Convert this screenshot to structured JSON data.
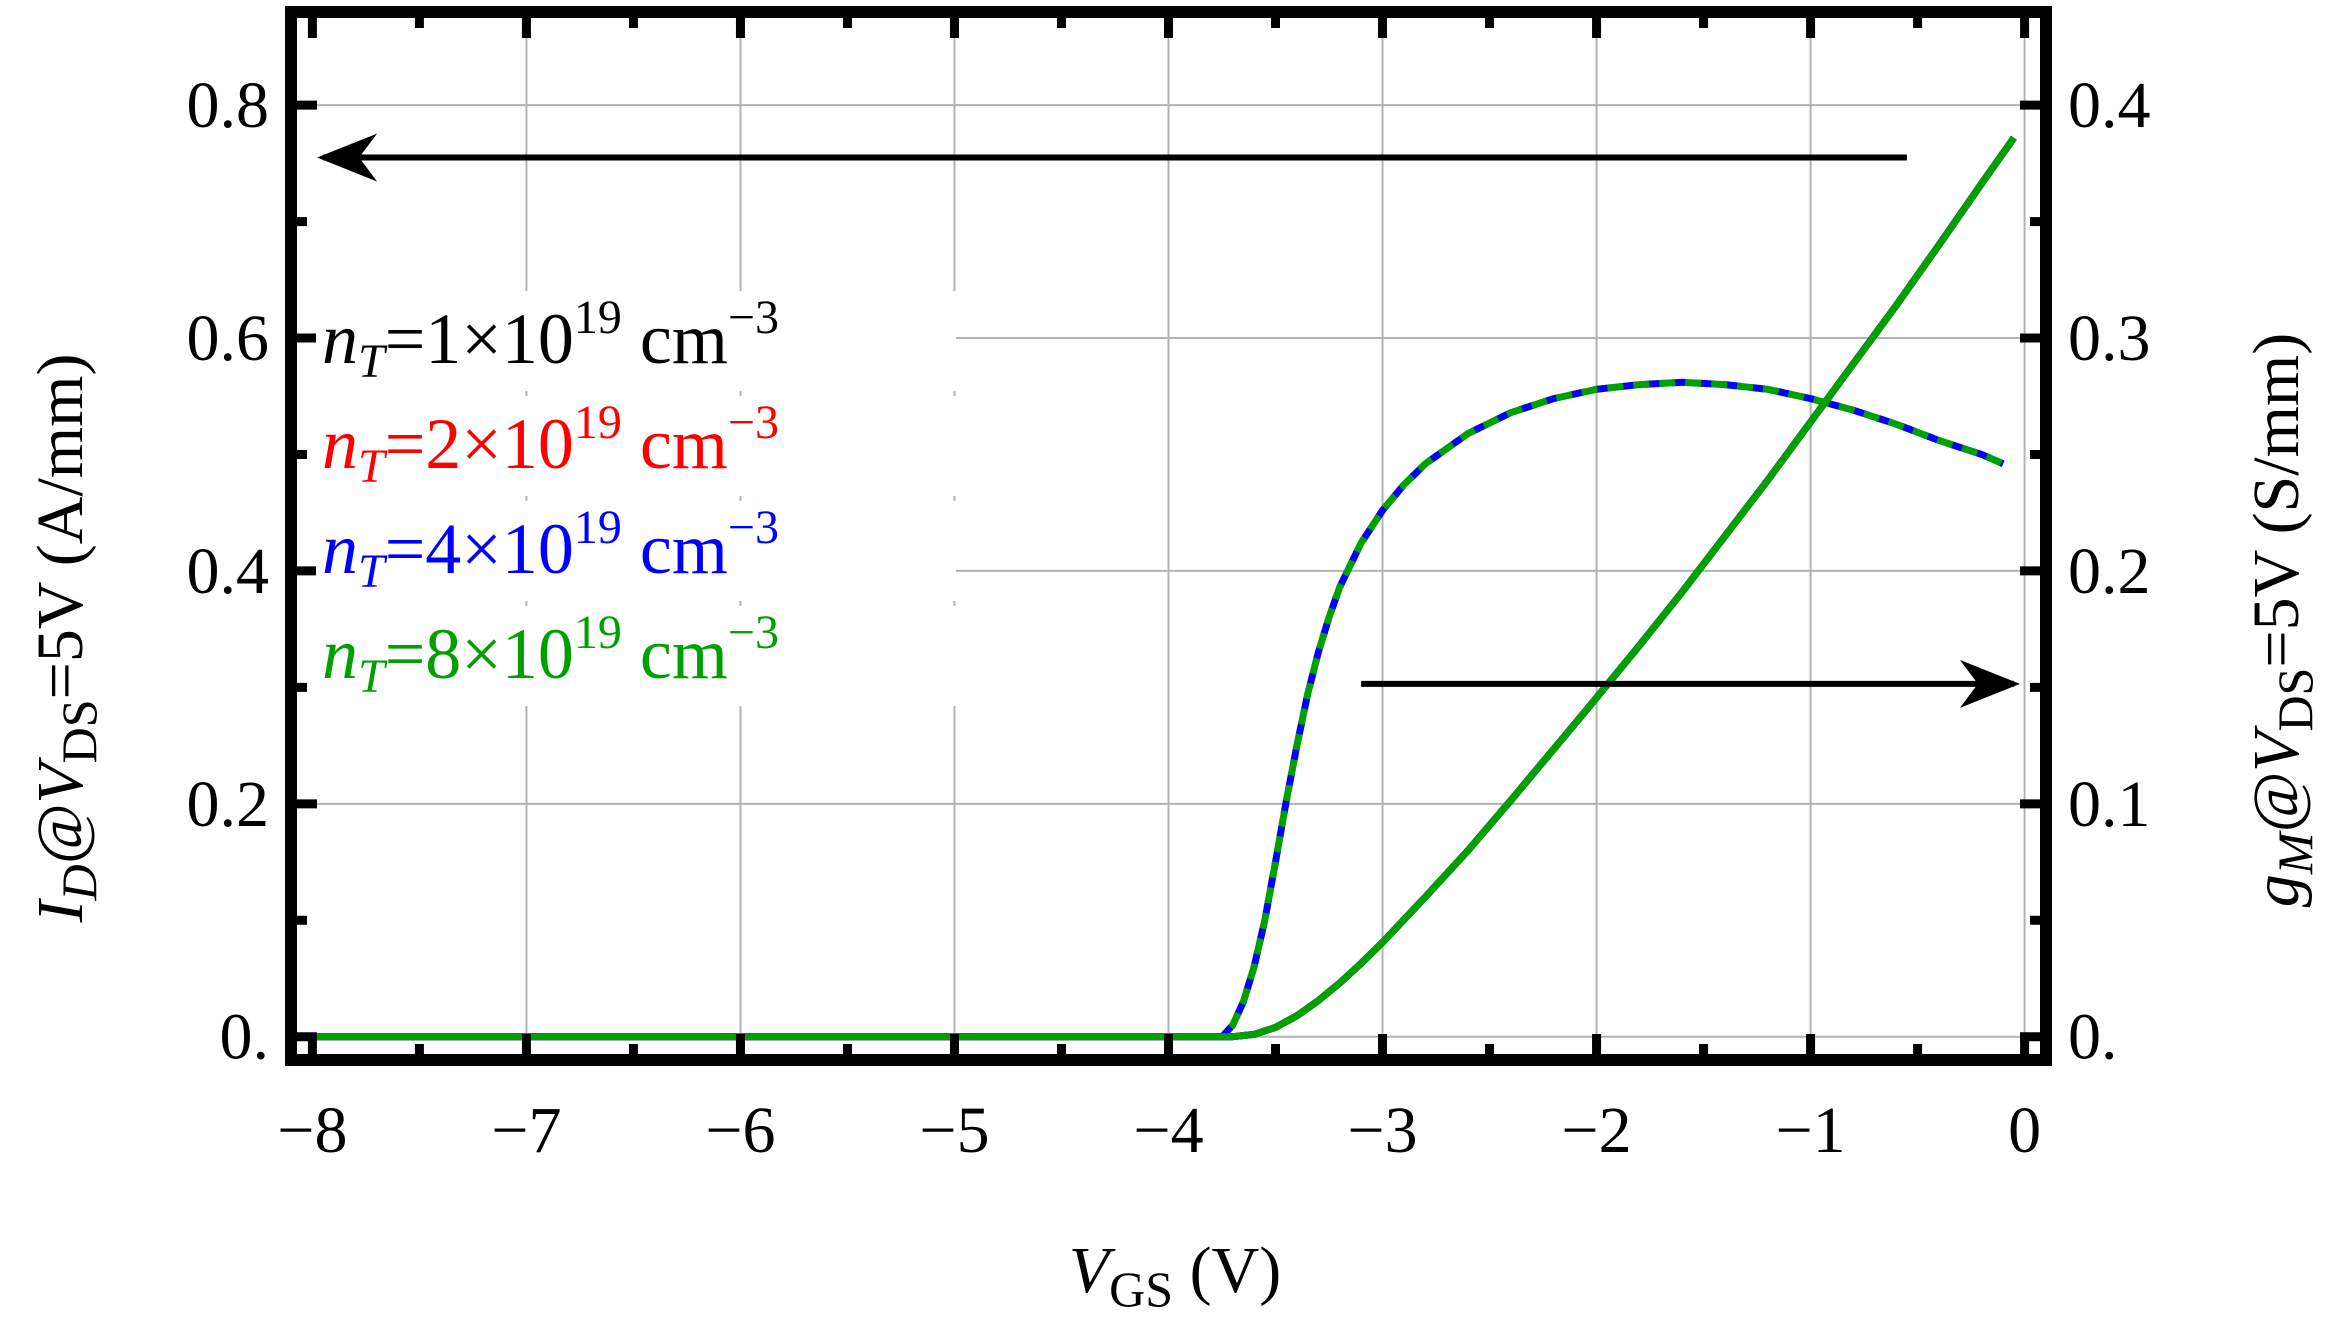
{
  "chart_data": {
    "type": "line",
    "xlabel": "V_GS (V)",
    "xlabel_parts": {
      "main": "V",
      "sub": "GS",
      "rest": " (V)"
    },
    "ylabel_left": "I_D@V_DS=5V (A/mm)",
    "ylabel_left_parts": {
      "var": "I",
      "var_sub": "D",
      "at": "@V",
      "at_sub": "DS",
      "rest": "=5V (A/mm)"
    },
    "ylabel_right": "g_M@V_DS=5V (S/mm)",
    "ylabel_right_parts": {
      "var": "g",
      "var_sub": "M",
      "at": "@V",
      "at_sub": "DS",
      "rest": "=5V (S/mm)"
    },
    "xlim": [
      -8.1,
      0.1
    ],
    "ylim_left": [
      -0.02,
      0.88
    ],
    "ylim_right": [
      -0.01,
      0.44
    ],
    "xticks": [
      -8,
      -7,
      -6,
      -5,
      -4,
      -3,
      -2,
      -1,
      0
    ],
    "xtick_labels": [
      "−8",
      "−7",
      "−6",
      "−5",
      "−4",
      "−3",
      "−2",
      "−1",
      "0"
    ],
    "yticks_left": [
      0,
      0.2,
      0.4,
      0.6,
      0.8
    ],
    "ytick_labels_left": [
      "0.",
      "0.2",
      "0.4",
      "0.6",
      "0.8"
    ],
    "yticks_right": [
      0,
      0.1,
      0.2,
      0.3,
      0.4
    ],
    "ytick_labels_right": [
      "0.",
      "0.1",
      "0.2",
      "0.3",
      "0.4"
    ],
    "grid": true,
    "legend_position": "left",
    "legend": [
      {
        "prefix": "n",
        "sub": "T",
        "mid": "=1×10",
        "sup": "19",
        "unit": " cm",
        "unit_sup": "−3",
        "color": "#000000"
      },
      {
        "prefix": "n",
        "sub": "T",
        "mid": "=2×10",
        "sup": "19",
        "unit": " cm",
        "unit_sup": "−3",
        "color": "#ff0000"
      },
      {
        "prefix": "n",
        "sub": "T",
        "mid": "=4×10",
        "sup": "19",
        "unit": " cm",
        "unit_sup": "−3",
        "color": "#0000ff"
      },
      {
        "prefix": "n",
        "sub": "T",
        "mid": "=8×10",
        "sup": "19",
        "unit": " cm",
        "unit_sup": "−3",
        "color": "#00a000"
      }
    ],
    "series_id": {
      "axis": "left",
      "style": "solid",
      "colors": [
        "#000000",
        "#ff0000",
        "#0000ff",
        "#00a000"
      ],
      "x": [
        -8,
        -7,
        -6,
        -5,
        -4,
        -3.8,
        -3.7,
        -3.6,
        -3.5,
        -3.4,
        -3.3,
        -3.2,
        -3.1,
        -3.0,
        -2.8,
        -2.6,
        -2.4,
        -2.2,
        -2.05,
        -1.8,
        -1.6,
        -1.4,
        -1.2,
        -1.0,
        -0.8,
        -0.6,
        -0.4,
        -0.2,
        -0.05
      ],
      "y": [
        0.0,
        0.0,
        0.0,
        0.0,
        0.0,
        0.0,
        0.0,
        0.002,
        0.008,
        0.018,
        0.031,
        0.046,
        0.063,
        0.081,
        0.12,
        0.16,
        0.203,
        0.247,
        0.28,
        0.336,
        0.382,
        0.43,
        0.478,
        0.528,
        0.578,
        0.628,
        0.68,
        0.733,
        0.772
      ]
    },
    "series_gm": {
      "axis": "right",
      "style": "dashed",
      "colors": [
        "#0000ff",
        "#00a000"
      ],
      "x": [
        -3.75,
        -3.7,
        -3.65,
        -3.6,
        -3.55,
        -3.5,
        -3.45,
        -3.4,
        -3.35,
        -3.3,
        -3.25,
        -3.2,
        -3.1,
        -3.0,
        -2.9,
        -2.8,
        -2.6,
        -2.4,
        -2.2,
        -2.0,
        -1.8,
        -1.6,
        -1.4,
        -1.2,
        -1.0,
        -0.8,
        -0.6,
        -0.4,
        -0.2,
        -0.1
      ],
      "y": [
        0.0,
        0.005,
        0.015,
        0.03,
        0.05,
        0.075,
        0.101,
        0.125,
        0.147,
        0.165,
        0.18,
        0.193,
        0.212,
        0.226,
        0.237,
        0.246,
        0.259,
        0.268,
        0.274,
        0.278,
        0.28,
        0.281,
        0.28,
        0.278,
        0.274,
        0.269,
        0.263,
        0.256,
        0.25,
        0.246
      ]
    },
    "annotations": [
      {
        "type": "arrow",
        "points_to": "left-axis",
        "from": [
          -0.55,
          0.755
        ],
        "to": [
          -7.95,
          0.755
        ],
        "axis": "left"
      },
      {
        "type": "arrow",
        "points_to": "right-axis",
        "from": [
          -3.1,
          0.303
        ],
        "to": [
          -0.05,
          0.303
        ],
        "axis": "left"
      }
    ]
  }
}
